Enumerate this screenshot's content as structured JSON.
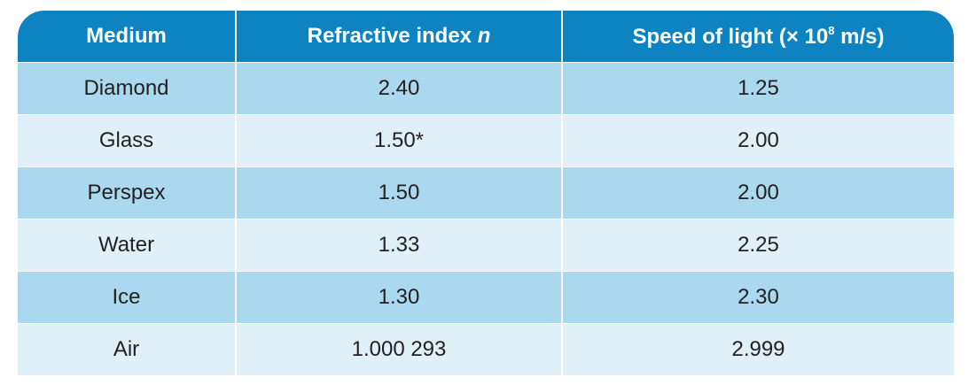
{
  "table": {
    "header": {
      "medium": "Medium",
      "refractive_label": "Refractive index",
      "refractive_symbol": "n",
      "speed_prefix": "Speed of light (× 10",
      "speed_exponent": "8",
      "speed_suffix": " m/s)"
    },
    "rows": [
      {
        "medium": "Diamond",
        "n": "2.40",
        "speed": "1.25"
      },
      {
        "medium": "Glass",
        "n": "1.50*",
        "speed": "2.00"
      },
      {
        "medium": "Perspex",
        "n": "1.50",
        "speed": "2.00"
      },
      {
        "medium": "Water",
        "n": "1.33",
        "speed": "2.25"
      },
      {
        "medium": "Ice",
        "n": "1.30",
        "speed": "2.30"
      },
      {
        "medium": "Air",
        "n": "1.000 293",
        "speed": "2.999"
      }
    ],
    "colors": {
      "header_bg": "#0d83c2",
      "row_dark": "#aad8ee",
      "row_light": "#dff0f8",
      "text": "#231f20"
    }
  }
}
